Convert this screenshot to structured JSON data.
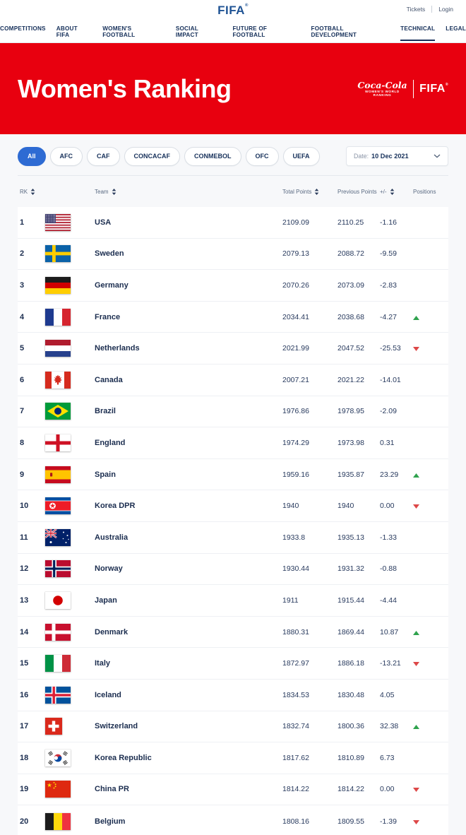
{
  "header": {
    "logo_text": "FIFA",
    "logo_reg": "®",
    "links": [
      {
        "label": "Tickets"
      },
      {
        "label": "Login"
      }
    ]
  },
  "nav": {
    "items": [
      {
        "label": "COMPETITIONS",
        "active": false
      },
      {
        "label": "ABOUT FIFA",
        "active": false
      },
      {
        "label": "WOMEN'S FOOTBALL",
        "active": false
      },
      {
        "label": "SOCIAL IMPACT",
        "active": false
      },
      {
        "label": "FUTURE OF FOOTBALL",
        "active": false
      },
      {
        "label": "FOOTBALL DEVELOPMENT",
        "active": false
      },
      {
        "label": "TECHNICAL",
        "active": true
      },
      {
        "label": "LEGAL",
        "active": false
      }
    ]
  },
  "banner": {
    "title": "Women's Ranking",
    "sponsor": {
      "brand": "Coca-Cola",
      "sub1": "WOMEN'S WORLD",
      "sub2": "RANKING",
      "partner": "FIFA",
      "partner_reg": "®"
    }
  },
  "filters": {
    "tabs": [
      {
        "label": "All",
        "active": true
      },
      {
        "label": "AFC",
        "active": false
      },
      {
        "label": "CAF",
        "active": false
      },
      {
        "label": "CONCACAF",
        "active": false
      },
      {
        "label": "CONMEBOL",
        "active": false
      },
      {
        "label": "OFC",
        "active": false
      },
      {
        "label": "UEFA",
        "active": false
      }
    ],
    "date_label": "Date:",
    "date_value": "10 Dec 2021"
  },
  "table": {
    "columns": [
      {
        "label": "RK",
        "sortable": true
      },
      {
        "label": "Team",
        "sortable": true
      },
      {
        "label": "Total Points",
        "sortable": true
      },
      {
        "label": "Previous Points",
        "sortable": false
      },
      {
        "label": "+/-",
        "sortable": true
      },
      {
        "label": "Positions",
        "sortable": false
      }
    ],
    "rows": [
      {
        "rk": "1",
        "team": "USA",
        "flag": "us",
        "total": "2109.09",
        "previous": "2110.25",
        "diff": "-1.16",
        "movement": "none"
      },
      {
        "rk": "2",
        "team": "Sweden",
        "flag": "se",
        "total": "2079.13",
        "previous": "2088.72",
        "diff": "-9.59",
        "movement": "none"
      },
      {
        "rk": "3",
        "team": "Germany",
        "flag": "de",
        "total": "2070.26",
        "previous": "2073.09",
        "diff": "-2.83",
        "movement": "none"
      },
      {
        "rk": "4",
        "team": "France",
        "flag": "fr",
        "total": "2034.41",
        "previous": "2038.68",
        "diff": "-4.27",
        "movement": "up"
      },
      {
        "rk": "5",
        "team": "Netherlands",
        "flag": "nl",
        "total": "2021.99",
        "previous": "2047.52",
        "diff": "-25.53",
        "movement": "down"
      },
      {
        "rk": "6",
        "team": "Canada",
        "flag": "ca",
        "total": "2007.21",
        "previous": "2021.22",
        "diff": "-14.01",
        "movement": "none"
      },
      {
        "rk": "7",
        "team": "Brazil",
        "flag": "br",
        "total": "1976.86",
        "previous": "1978.95",
        "diff": "-2.09",
        "movement": "none"
      },
      {
        "rk": "8",
        "team": "England",
        "flag": "en",
        "total": "1974.29",
        "previous": "1973.98",
        "diff": "0.31",
        "movement": "none"
      },
      {
        "rk": "9",
        "team": "Spain",
        "flag": "es",
        "total": "1959.16",
        "previous": "1935.87",
        "diff": "23.29",
        "movement": "up"
      },
      {
        "rk": "10",
        "team": "Korea DPR",
        "flag": "kp",
        "total": "1940",
        "previous": "1940",
        "diff": "0.00",
        "movement": "down"
      },
      {
        "rk": "11",
        "team": "Australia",
        "flag": "au",
        "total": "1933.8",
        "previous": "1935.13",
        "diff": "-1.33",
        "movement": "none"
      },
      {
        "rk": "12",
        "team": "Norway",
        "flag": "no",
        "total": "1930.44",
        "previous": "1931.32",
        "diff": "-0.88",
        "movement": "none"
      },
      {
        "rk": "13",
        "team": "Japan",
        "flag": "jp",
        "total": "1911",
        "previous": "1915.44",
        "diff": "-4.44",
        "movement": "none"
      },
      {
        "rk": "14",
        "team": "Denmark",
        "flag": "dk",
        "total": "1880.31",
        "previous": "1869.44",
        "diff": "10.87",
        "movement": "up"
      },
      {
        "rk": "15",
        "team": "Italy",
        "flag": "it",
        "total": "1872.97",
        "previous": "1886.18",
        "diff": "-13.21",
        "movement": "down"
      },
      {
        "rk": "16",
        "team": "Iceland",
        "flag": "is",
        "total": "1834.53",
        "previous": "1830.48",
        "diff": "4.05",
        "movement": "none"
      },
      {
        "rk": "17",
        "team": "Switzerland",
        "flag": "ch",
        "total": "1832.74",
        "previous": "1800.36",
        "diff": "32.38",
        "movement": "up"
      },
      {
        "rk": "18",
        "team": "Korea Republic",
        "flag": "kr",
        "total": "1817.62",
        "previous": "1810.89",
        "diff": "6.73",
        "movement": "none"
      },
      {
        "rk": "19",
        "team": "China PR",
        "flag": "cn",
        "total": "1814.22",
        "previous": "1814.22",
        "diff": "0.00",
        "movement": "down"
      },
      {
        "rk": "20",
        "team": "Belgium",
        "flag": "be",
        "total": "1808.16",
        "previous": "1809.55",
        "diff": "-1.39",
        "movement": "down"
      }
    ]
  },
  "colors": {
    "banner_red": "#E8000F",
    "active_pill_blue": "#2E6BD3",
    "movement_up_green": "#2FA24D",
    "movement_down_red": "#DD4848",
    "navy_text": "#16305A"
  }
}
